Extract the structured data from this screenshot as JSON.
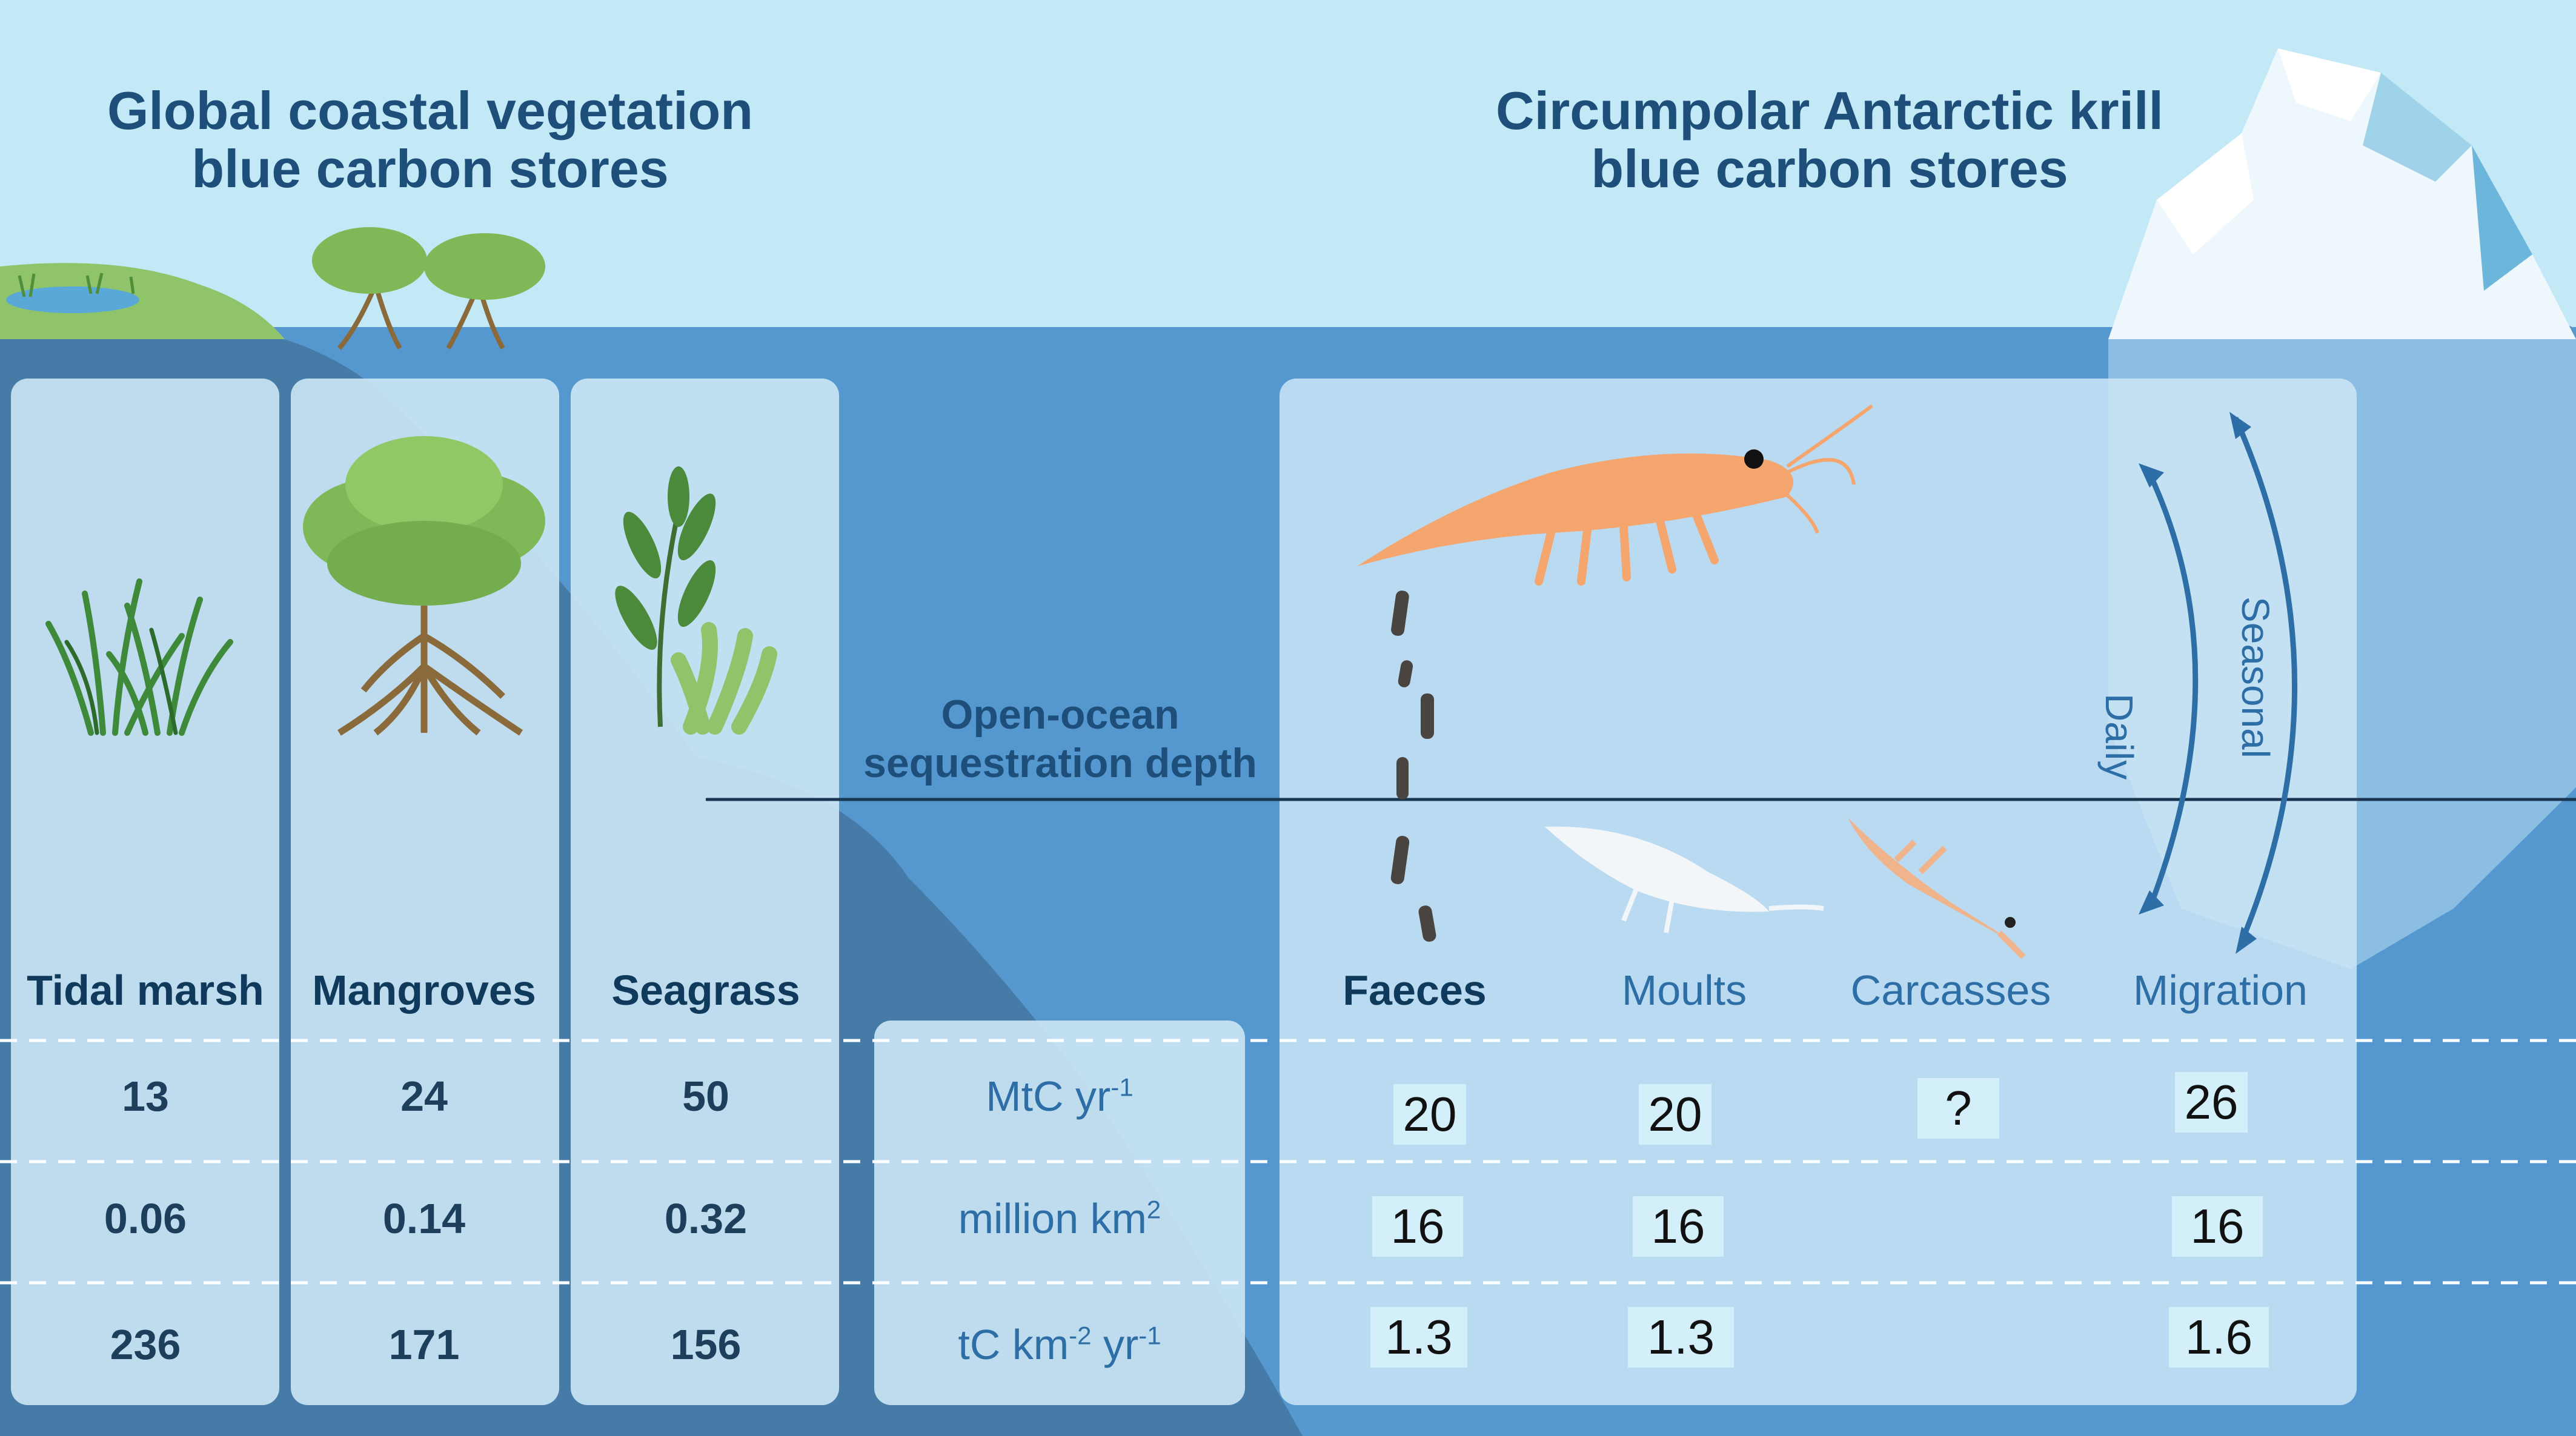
{
  "titles": {
    "coastal_line1": "Global coastal vegetation",
    "coastal_line2": "blue carbon stores",
    "krill_line1": "Circumpolar Antarctic krill",
    "krill_line2": "blue carbon stores"
  },
  "depth_label": {
    "line1": "Open-ocean",
    "line2": "sequestration depth"
  },
  "migration_arrows": {
    "daily": "Daily",
    "seasonal": "Seasonal"
  },
  "coastal_columns": [
    {
      "name": "Tidal marsh",
      "flux": "13",
      "area": "0.06",
      "rate": "236"
    },
    {
      "name": "Mangroves",
      "flux": "24",
      "area": "0.14",
      "rate": "171"
    },
    {
      "name": "Seagrass",
      "flux": "50",
      "area": "0.32",
      "rate": "156"
    }
  ],
  "units": {
    "flux_base": "MtC yr",
    "flux_sup": "-1",
    "area_base": "million km",
    "area_sup": "2",
    "rate_base1": "tC km",
    "rate_sup1": "-2",
    "rate_base2": " yr",
    "rate_sup2": "-1"
  },
  "krill_columns": [
    {
      "name": "Faeces",
      "flux": "20",
      "area": "16",
      "rate": "1.3"
    },
    {
      "name": "Moults",
      "flux": "20",
      "area": "16",
      "rate": "1.3"
    },
    {
      "name": "Carcasses",
      "flux": "?",
      "area": "",
      "rate": ""
    },
    {
      "name": "Migration",
      "flux": "26",
      "area": "16",
      "rate": "1.6"
    }
  ],
  "colors": {
    "sky": "#c3e8f6",
    "ocean": "#5598d0",
    "deep_slope": "#467ba8",
    "panel": "#cfe9f6",
    "heading_text": "#1d4f7a",
    "krill": "#f5a56e"
  }
}
